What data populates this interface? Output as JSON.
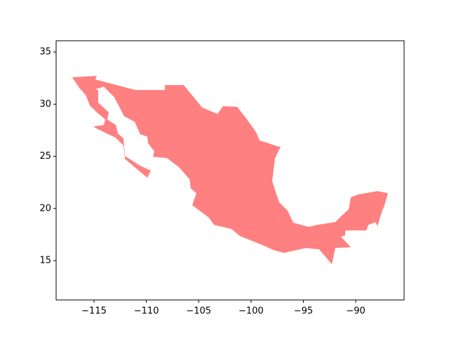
{
  "chart_data": {
    "type": "polygon",
    "color": "#ff8080",
    "x": [
      -117.08,
      -114.73,
      -114.87,
      -111.05,
      -108.23,
      -108.23,
      -106.42,
      -104.68,
      -103.21,
      -102.67,
      -101.33,
      -100.39,
      -99.52,
      -99.18,
      -97.51,
      -97.17,
      -97.71,
      -97.98,
      -97.31,
      -96.5,
      -95.97,
      -94.49,
      -93.69,
      -91.95,
      -91.41,
      -90.67,
      -90.47,
      -89.8,
      -87.92,
      -86.92,
      -87.25,
      -87.52,
      -87.92,
      -88.12,
      -88.79,
      -89.0,
      -91.01,
      -91.01,
      -91.41,
      -90.47,
      -91.95,
      -92.28,
      -93.49,
      -94.76,
      -96.84,
      -97.84,
      -99.05,
      -101.06,
      -101.87,
      -103.54,
      -104.01,
      -105.62,
      -105.22,
      -105.76,
      -105.88,
      -106.89,
      -108.03,
      -109.37,
      -109.24,
      -109.84,
      -109.91,
      -110.58,
      -111.11,
      -112.12,
      -113.06,
      -114.06,
      -114.87,
      -114.6,
      -114.6,
      -113.59,
      -113.73,
      -112.92,
      -112.72,
      -112.19,
      -112.05,
      -110.58,
      -109.57,
      -109.91,
      -112.05,
      -112.19,
      -112.92,
      -113.79,
      -114.6,
      -115.07,
      -114.06,
      -113.93,
      -114.73,
      -115.4,
      -115.8,
      -116.41
    ],
    "y": [
      32.58,
      32.71,
      32.37,
      31.36,
      31.36,
      31.83,
      31.83,
      29.68,
      29.07,
      29.81,
      29.75,
      28.54,
      27.32,
      26.52,
      25.98,
      25.91,
      24.83,
      22.61,
      20.59,
      19.78,
      18.64,
      18.23,
      18.43,
      18.7,
      19.24,
      19.92,
      21.06,
      21.33,
      21.67,
      21.46,
      20.32,
      19.65,
      18.3,
      18.7,
      18.43,
      17.9,
      17.9,
      17.42,
      17.29,
      16.28,
      16.21,
      14.66,
      16.08,
      16.21,
      15.74,
      16.01,
      16.55,
      17.36,
      18.03,
      18.43,
      19.11,
      20.32,
      21.46,
      21.94,
      22.81,
      23.96,
      24.83,
      24.95,
      25.49,
      26.25,
      26.9,
      27.11,
      28.3,
      28.84,
      30.66,
      31.67,
      31.43,
      31.36,
      30.15,
      29.21,
      28.54,
      28.0,
      27.19,
      26.72,
      25.03,
      24.09,
      23.62,
      22.95,
      24.76,
      26.04,
      26.78,
      27.19,
      27.59,
      27.86,
      28.0,
      28.54,
      29.21,
      29.88,
      30.89,
      31.57
    ],
    "xlim": [
      -118.62,
      -85.38
    ],
    "xticks": [
      {
        "value": -115,
        "label": "−115"
      },
      {
        "value": -110,
        "label": "−110"
      },
      {
        "value": -105,
        "label": "−105"
      },
      {
        "value": -100,
        "label": "−100"
      },
      {
        "value": -95,
        "label": "−95"
      },
      {
        "value": -90,
        "label": "−90"
      }
    ],
    "ylim": [
      11.23,
      36.08
    ],
    "yticks": [
      15,
      20,
      25,
      30,
      35
    ]
  }
}
